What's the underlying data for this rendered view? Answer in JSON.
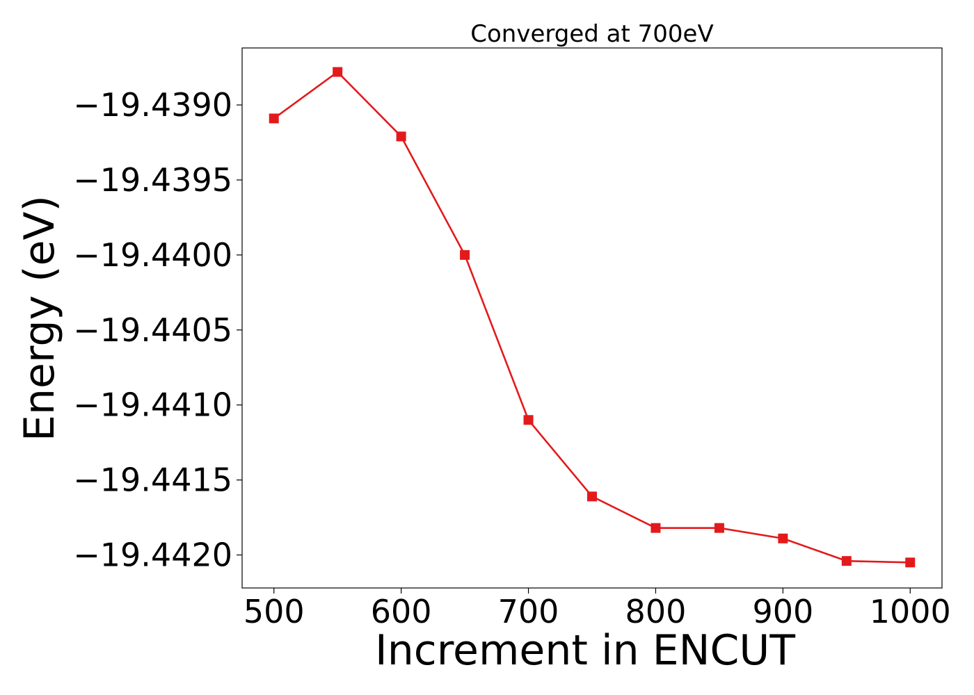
{
  "chart_data": {
    "type": "line",
    "title": "Converged at 700eV",
    "xlabel": "Increment in ENCUT",
    "ylabel": "Energy (eV)",
    "x": [
      500,
      550,
      600,
      650,
      700,
      750,
      800,
      850,
      900,
      950,
      1000
    ],
    "series": [
      {
        "values": [
          -19.43909,
          -19.43878,
          -19.43921,
          -19.44,
          -19.4411,
          -19.44161,
          -19.44182,
          -19.44182,
          -19.44189,
          -19.44204,
          -19.44205
        ],
        "color": "#e31a1c",
        "marker": "square"
      }
    ],
    "xlim": [
      475,
      1025
    ],
    "ylim": [
      -19.44222,
      -19.43862
    ],
    "xticks": [
      500,
      600,
      700,
      800,
      900,
      1000
    ],
    "xtick_labels": [
      "500",
      "600",
      "700",
      "800",
      "900",
      "1000"
    ],
    "yticks": [
      -19.439,
      -19.4395,
      -19.44,
      -19.4405,
      -19.441,
      -19.4415,
      -19.442
    ],
    "ytick_labels": [
      "−19.4390",
      "−19.4395",
      "−19.4400",
      "−19.4405",
      "−19.4410",
      "−19.4415",
      "−19.4420"
    ],
    "grid": false,
    "legend": "none"
  }
}
